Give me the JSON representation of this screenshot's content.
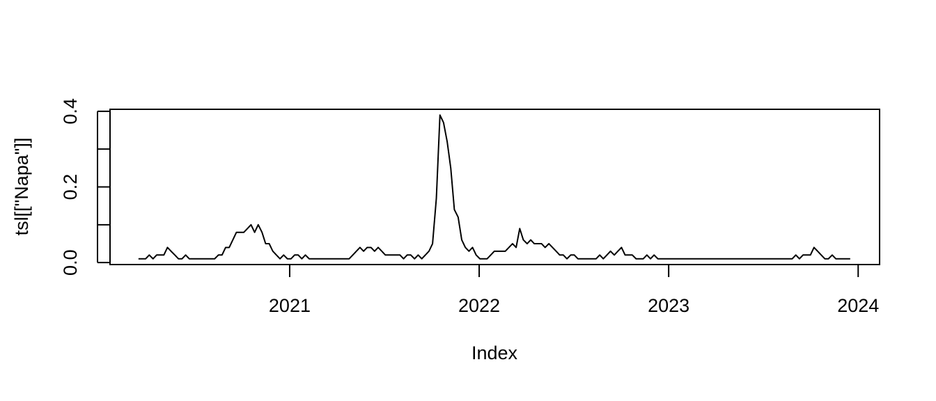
{
  "chart_data": {
    "type": "line",
    "x_label": "Index",
    "y_label": "tsl[[\"Napa\"]]",
    "color": "#000000",
    "xlim": [
      2020.052,
      2024.113
    ],
    "ylim": [
      -0.0052,
      0.4052
    ],
    "xticks": [
      2021,
      2022,
      2023,
      2024
    ],
    "yticks": [
      {
        "value": 0,
        "label": "0.0"
      },
      {
        "value": 0.1,
        "label": null
      },
      0.2,
      {
        "value": 0.3,
        "label": null
      },
      0.4
    ],
    "x": [
      2020.202,
      2020.221,
      2020.24,
      2020.259,
      2020.279,
      2020.298,
      2020.317,
      2020.336,
      2020.355,
      2020.374,
      2020.394,
      2020.413,
      2020.432,
      2020.451,
      2020.47,
      2020.489,
      2020.509,
      2020.528,
      2020.547,
      2020.566,
      2020.585,
      2020.604,
      2020.624,
      2020.643,
      2020.662,
      2020.681,
      2020.7,
      2020.719,
      2020.739,
      2020.758,
      2020.777,
      2020.796,
      2020.815,
      2020.834,
      2020.854,
      2020.873,
      2020.892,
      2020.911,
      2020.93,
      2020.949,
      2020.968,
      2020.988,
      2021.007,
      2021.026,
      2021.045,
      2021.064,
      2021.083,
      2021.103,
      2021.122,
      2021.141,
      2021.16,
      2021.179,
      2021.199,
      2021.218,
      2021.237,
      2021.256,
      2021.275,
      2021.294,
      2021.314,
      2021.333,
      2021.352,
      2021.371,
      2021.39,
      2021.409,
      2021.429,
      2021.448,
      2021.467,
      2021.486,
      2021.505,
      2021.524,
      2021.544,
      2021.563,
      2021.582,
      2021.601,
      2021.62,
      2021.639,
      2021.659,
      2021.678,
      2021.697,
      2021.716,
      2021.735,
      2021.754,
      2021.774,
      2021.793,
      2021.812,
      2021.831,
      2021.85,
      2021.869,
      2021.889,
      2021.908,
      2021.927,
      2021.946,
      2021.965,
      2021.984,
      2022.004,
      2022.023,
      2022.042,
      2022.061,
      2022.08,
      2022.099,
      2022.119,
      2022.138,
      2022.157,
      2022.176,
      2022.195,
      2022.214,
      2022.233,
      2022.253,
      2022.272,
      2022.291,
      2022.31,
      2022.329,
      2022.348,
      2022.368,
      2022.387,
      2022.406,
      2022.425,
      2022.444,
      2022.463,
      2022.483,
      2022.502,
      2022.521,
      2022.54,
      2022.559,
      2022.578,
      2022.598,
      2022.617,
      2022.636,
      2022.655,
      2022.674,
      2022.693,
      2022.713,
      2022.732,
      2022.751,
      2022.77,
      2022.789,
      2022.808,
      2022.828,
      2022.847,
      2022.866,
      2022.885,
      2022.904,
      2022.923,
      2022.943,
      2022.962,
      2022.981,
      2023.0,
      2023.019,
      2023.038,
      2023.058,
      2023.077,
      2023.096,
      2023.115,
      2023.134,
      2023.153,
      2023.173,
      2023.192,
      2023.211,
      2023.23,
      2023.249,
      2023.268,
      2023.288,
      2023.307,
      2023.326,
      2023.345,
      2023.364,
      2023.383,
      2023.403,
      2023.422,
      2023.441,
      2023.46,
      2023.479,
      2023.498,
      2023.518,
      2023.537,
      2023.556,
      2023.575,
      2023.594,
      2023.613,
      2023.633,
      2023.652,
      2023.671,
      2023.69,
      2023.709,
      2023.728,
      2023.748,
      2023.767,
      2023.786,
      2023.805,
      2023.824,
      2023.843,
      2023.863,
      2023.882,
      2023.901,
      2023.92,
      2023.939,
      2023.958
    ],
    "values": [
      0.01,
      0.01,
      0.01,
      0.02,
      0.01,
      0.02,
      0.02,
      0.02,
      0.04,
      0.03,
      0.02,
      0.01,
      0.01,
      0.02,
      0.01,
      0.01,
      0.01,
      0.01,
      0.01,
      0.01,
      0.01,
      0.01,
      0.02,
      0.02,
      0.04,
      0.04,
      0.06,
      0.08,
      0.08,
      0.08,
      0.09,
      0.1,
      0.08,
      0.1,
      0.08,
      0.05,
      0.05,
      0.03,
      0.02,
      0.01,
      0.02,
      0.01,
      0.01,
      0.02,
      0.02,
      0.01,
      0.02,
      0.01,
      0.01,
      0.01,
      0.01,
      0.01,
      0.01,
      0.01,
      0.01,
      0.01,
      0.01,
      0.01,
      0.01,
      0.02,
      0.03,
      0.04,
      0.03,
      0.04,
      0.04,
      0.03,
      0.04,
      0.03,
      0.02,
      0.02,
      0.02,
      0.02,
      0.02,
      0.01,
      0.02,
      0.02,
      0.01,
      0.02,
      0.01,
      0.02,
      0.03,
      0.05,
      0.17,
      0.39,
      0.37,
      0.32,
      0.25,
      0.14,
      0.12,
      0.06,
      0.04,
      0.03,
      0.04,
      0.02,
      0.01,
      0.01,
      0.01,
      0.02,
      0.03,
      0.03,
      0.03,
      0.03,
      0.04,
      0.05,
      0.04,
      0.09,
      0.06,
      0.05,
      0.06,
      0.05,
      0.05,
      0.05,
      0.04,
      0.05,
      0.04,
      0.03,
      0.02,
      0.02,
      0.01,
      0.02,
      0.02,
      0.01,
      0.01,
      0.01,
      0.01,
      0.01,
      0.01,
      0.02,
      0.01,
      0.02,
      0.03,
      0.02,
      0.03,
      0.04,
      0.02,
      0.02,
      0.02,
      0.01,
      0.01,
      0.01,
      0.02,
      0.01,
      0.02,
      0.01,
      0.01,
      0.01,
      0.01,
      0.01,
      0.01,
      0.01,
      0.01,
      0.01,
      0.01,
      0.01,
      0.01,
      0.01,
      0.01,
      0.01,
      0.01,
      0.01,
      0.01,
      0.01,
      0.01,
      0.01,
      0.01,
      0.01,
      0.01,
      0.01,
      0.01,
      0.01,
      0.01,
      0.01,
      0.01,
      0.01,
      0.01,
      0.01,
      0.01,
      0.01,
      0.01,
      0.01,
      0.01,
      0.02,
      0.01,
      0.02,
      0.02,
      0.02,
      0.04,
      0.03,
      0.02,
      0.01,
      0.01,
      0.02,
      0.01,
      0.01,
      0.01,
      0.01,
      0.01
    ]
  }
}
